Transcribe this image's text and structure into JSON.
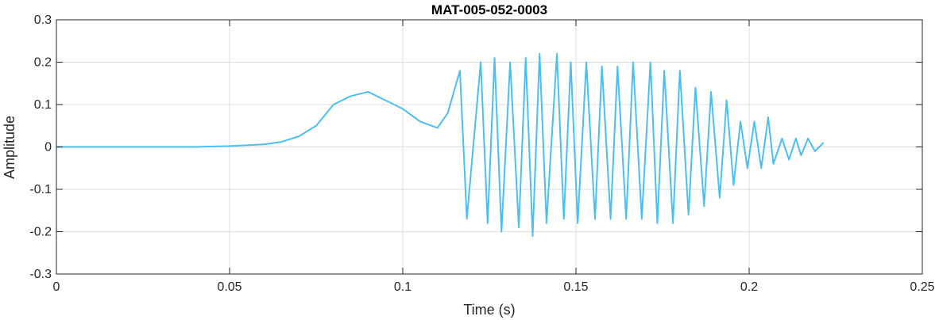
{
  "chart_data": {
    "type": "line",
    "title": "MAT-005-052-0003",
    "xlabel": "Time (s)",
    "ylabel": "Amplitude",
    "xlim": [
      0,
      0.25
    ],
    "ylim": [
      -0.3,
      0.3
    ],
    "xticks": [
      0,
      0.05,
      0.1,
      0.15,
      0.2,
      0.25
    ],
    "xtick_labels": [
      "0",
      "0.05",
      "0.1",
      "0.15",
      "0.2",
      "0.25"
    ],
    "yticks": [
      -0.3,
      -0.2,
      -0.1,
      0,
      0.1,
      0.2,
      0.3
    ],
    "ytick_labels": [
      "-0.3",
      "-0.2",
      "-0.1",
      "0",
      "0.1",
      "0.2",
      "0.3"
    ],
    "grid": true,
    "line_color": "#4DBEEE",
    "series": [
      {
        "x": [
          0.0,
          0.02,
          0.04,
          0.05,
          0.06,
          0.065,
          0.07,
          0.075,
          0.08,
          0.085,
          0.09,
          0.095,
          0.1,
          0.105,
          0.11,
          0.113,
          0.1165,
          0.1185,
          0.1225,
          0.1245,
          0.1265,
          0.1285,
          0.131,
          0.1335,
          0.1355,
          0.1375,
          0.1395,
          0.1415,
          0.1445,
          0.1465,
          0.1485,
          0.1505,
          0.153,
          0.1555,
          0.1575,
          0.16,
          0.162,
          0.1645,
          0.1665,
          0.169,
          0.1715,
          0.1735,
          0.1755,
          0.178,
          0.18,
          0.1825,
          0.1845,
          0.187,
          0.189,
          0.1915,
          0.1935,
          0.1955,
          0.1975,
          0.1995,
          0.2015,
          0.2035,
          0.2055,
          0.207,
          0.2095,
          0.2115,
          0.2135,
          0.215,
          0.217,
          0.219,
          0.2215
        ],
        "y": [
          0.0,
          0.0,
          0.0,
          0.002,
          0.006,
          0.012,
          0.025,
          0.05,
          0.1,
          0.12,
          0.13,
          0.11,
          0.09,
          0.06,
          0.045,
          0.08,
          0.18,
          -0.17,
          0.2,
          -0.18,
          0.21,
          -0.2,
          0.2,
          -0.19,
          0.21,
          -0.21,
          0.22,
          -0.18,
          0.22,
          -0.17,
          0.2,
          -0.18,
          0.2,
          -0.17,
          0.19,
          -0.17,
          0.19,
          -0.17,
          0.2,
          -0.17,
          0.2,
          -0.18,
          0.18,
          -0.18,
          0.18,
          -0.16,
          0.14,
          -0.14,
          0.13,
          -0.12,
          0.11,
          -0.09,
          0.06,
          -0.05,
          0.06,
          -0.05,
          0.07,
          -0.04,
          0.02,
          -0.03,
          0.02,
          -0.02,
          0.02,
          -0.01,
          0.01
        ]
      }
    ]
  }
}
